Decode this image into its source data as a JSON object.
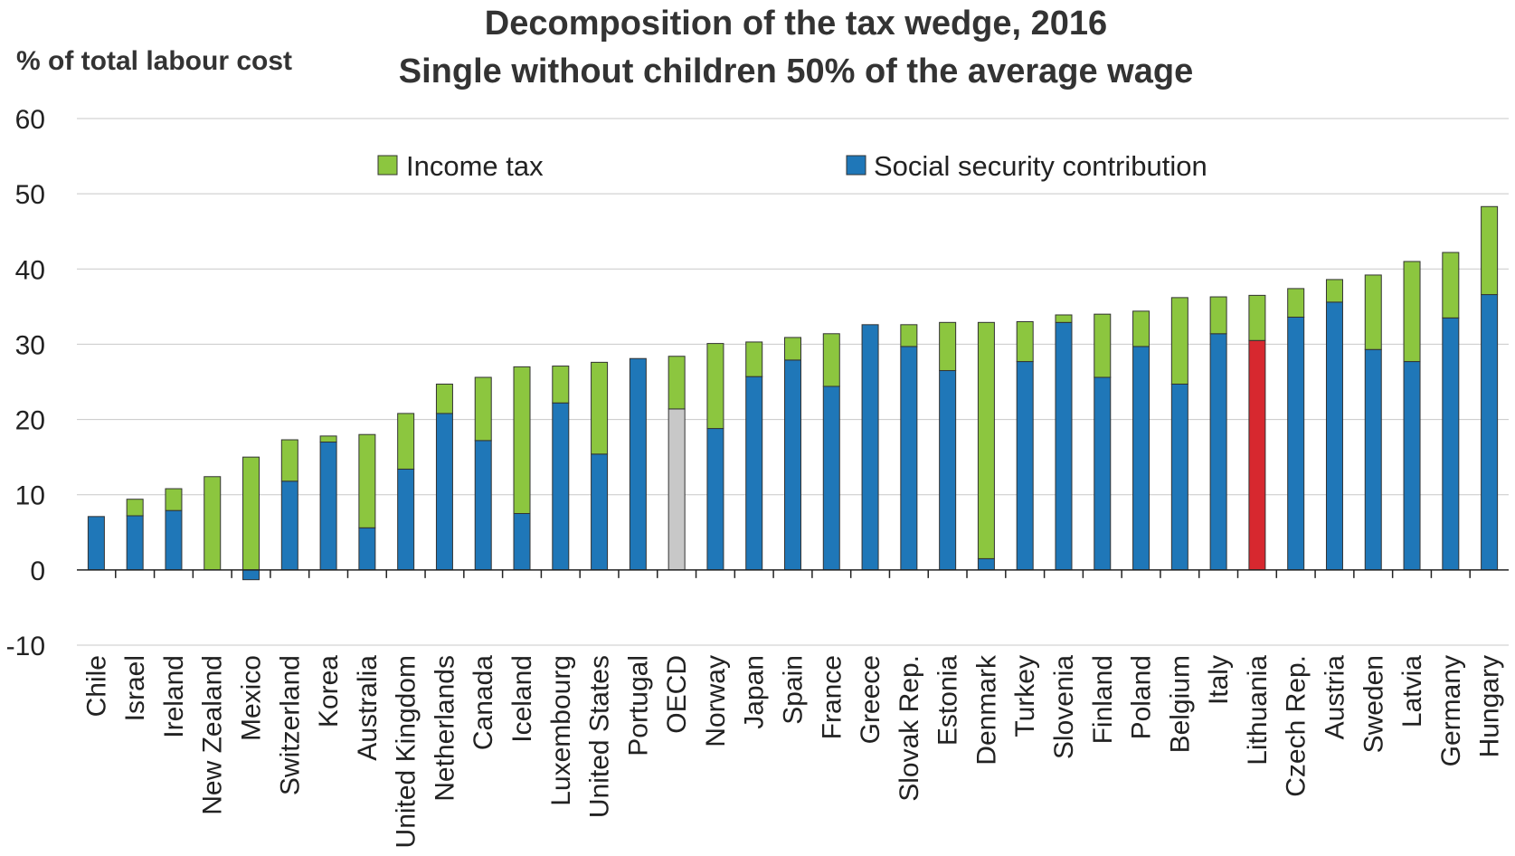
{
  "chart_data": {
    "type": "bar",
    "stacked": true,
    "title": "Decomposition of the tax wedge, 2016",
    "subtitle": "Single without children 50% of the average wage",
    "ylabel": "% of total labour cost",
    "xlabel": "",
    "ylim": [
      -10,
      60
    ],
    "yticks": [
      60,
      50,
      40,
      30,
      20,
      10,
      0,
      -10
    ],
    "grid": true,
    "legend_position": "top",
    "categories": [
      "Chile",
      "Israel",
      "Ireland",
      "New Zealand",
      "Mexico",
      "Switzerland",
      "Korea",
      "Australia",
      "United Kingdom",
      "Netherlands",
      "Canada",
      "Iceland",
      "Luxembourg",
      "United States",
      "Portugal",
      "OECD",
      "Norway",
      "Japan",
      "Spain",
      "France",
      "Greece",
      "Slovak Rep.",
      "Estonia",
      "Denmark",
      "Turkey",
      "Slovenia",
      "Finland",
      "Poland",
      "Belgium",
      "Italy",
      "Lithuania",
      "Czech Rep.",
      "Austria",
      "Sweden",
      "Latvia",
      "Germany",
      "Hungary"
    ],
    "series": [
      {
        "name": "Social security contribution",
        "color": "#1f77b8",
        "values": [
          7.1,
          7.2,
          7.9,
          0.0,
          -1.3,
          11.8,
          17.0,
          5.6,
          13.4,
          20.8,
          17.2,
          7.5,
          22.2,
          15.4,
          28.1,
          21.4,
          18.8,
          25.7,
          27.9,
          24.4,
          32.6,
          29.7,
          26.5,
          1.5,
          27.7,
          32.9,
          25.6,
          29.7,
          24.7,
          31.4,
          30.5,
          33.6,
          35.6,
          29.3,
          27.7,
          33.5,
          36.6
        ]
      },
      {
        "name": "Income tax",
        "color": "#8cc63f",
        "values": [
          0.0,
          2.2,
          2.9,
          12.4,
          15.0,
          5.5,
          0.8,
          12.4,
          7.4,
          3.9,
          8.4,
          19.5,
          4.9,
          12.2,
          0.0,
          7.0,
          11.3,
          4.6,
          3.0,
          7.0,
          0.0,
          2.9,
          6.4,
          31.4,
          5.3,
          1.0,
          8.4,
          4.7,
          11.5,
          4.9,
          6.0,
          3.8,
          3.0,
          9.9,
          13.3,
          8.7,
          11.7
        ]
      }
    ],
    "highlight_colors": {
      "OECD": "#c8c8c8",
      "Lithuania": "#d7282f"
    },
    "legend": {
      "income_tax": "Income tax",
      "social_security": "Social security contribution"
    }
  }
}
